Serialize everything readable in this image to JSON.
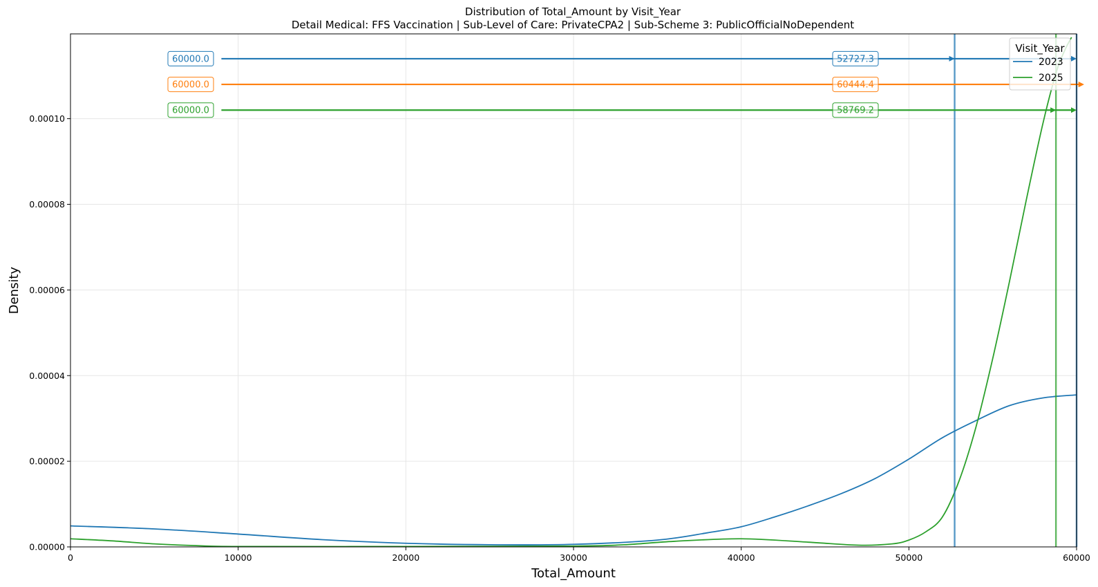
{
  "chart_data": {
    "type": "line",
    "title": "Distribution of Total_Amount by Visit_Year",
    "subtitle": "Detail Medical: FFS Vaccination | Sub-Level of Care: PrivateCPA2 | Sub-Scheme 3: PublicOfficialNoDependent",
    "xlabel": "Total_Amount",
    "ylabel": "Density",
    "xlim": [
      0,
      60000
    ],
    "ylim": [
      0,
      0.0001198
    ],
    "x_ticks": [
      0,
      10000,
      20000,
      30000,
      40000,
      50000,
      60000
    ],
    "x_tick_labels": [
      "0",
      "10000",
      "20000",
      "30000",
      "40000",
      "50000",
      "60000"
    ],
    "y_ticks": [
      0,
      2e-05,
      4e-05,
      6e-05,
      8e-05,
      0.0001
    ],
    "y_tick_labels": [
      "0.00000",
      "0.00002",
      "0.00004",
      "0.00006",
      "0.00008",
      "0.00010"
    ],
    "grid": true,
    "legend": {
      "title": "Visit_Year",
      "placement": "top-right",
      "entries": [
        {
          "label": "2023",
          "color": "#1f77b4"
        },
        {
          "label": "2025",
          "color": "#2ca02c"
        }
      ]
    },
    "series": [
      {
        "name": "2023",
        "color": "#1f77b4",
        "points": [
          [
            0,
            4.9e-06
          ],
          [
            5000,
            4.2e-06
          ],
          [
            10000,
            3e-06
          ],
          [
            15000,
            1.7e-06
          ],
          [
            20000,
            8.5e-07
          ],
          [
            25000,
            5e-07
          ],
          [
            30000,
            6e-07
          ],
          [
            35000,
            1.6e-06
          ],
          [
            38000,
            3.3e-06
          ],
          [
            40000,
            4.7e-06
          ],
          [
            42000,
            7e-06
          ],
          [
            44000,
            9.6e-06
          ],
          [
            46000,
            1.25e-05
          ],
          [
            48000,
            1.6e-05
          ],
          [
            50000,
            2.05e-05
          ],
          [
            52000,
            2.55e-05
          ],
          [
            54000,
            2.95e-05
          ],
          [
            56000,
            3.3e-05
          ],
          [
            58000,
            3.48e-05
          ],
          [
            60000,
            3.55e-05
          ]
        ]
      },
      {
        "name": "2025",
        "color": "#2ca02c",
        "points": [
          [
            0,
            1.9e-06
          ],
          [
            2500,
            1.4e-06
          ],
          [
            5000,
            7e-07
          ],
          [
            7500,
            3e-07
          ],
          [
            10000,
            1e-07
          ],
          [
            20000,
            1e-07
          ],
          [
            30000,
            2e-07
          ],
          [
            33000,
            5e-07
          ],
          [
            36000,
            1.3e-06
          ],
          [
            40000,
            1.9e-06
          ],
          [
            44000,
            1.1e-06
          ],
          [
            47000,
            4e-07
          ],
          [
            49000,
            7e-07
          ],
          [
            50000,
            1.6e-06
          ],
          [
            51000,
            3.5e-06
          ],
          [
            52000,
            7e-06
          ],
          [
            53000,
            1.55e-05
          ],
          [
            54000,
            2.8e-05
          ],
          [
            55000,
            4.4e-05
          ],
          [
            56000,
            6.2e-05
          ],
          [
            57000,
            8.1e-05
          ],
          [
            58000,
            9.9e-05
          ],
          [
            58800,
            0.000111
          ],
          [
            59300,
            0.000116
          ],
          [
            59700,
            0.000119
          ]
        ]
      }
    ],
    "vertical_lines": [
      {
        "x": 52727.3,
        "color": "#1f77b4"
      },
      {
        "x": 58769.2,
        "color": "#2ca02c"
      },
      {
        "x": 60000,
        "color": "#1f77b4"
      },
      {
        "x": 60000,
        "color": "#000000",
        "dashed": true
      }
    ],
    "annotations": [
      {
        "label": "60000.0",
        "y": 0.000114,
        "x_start": 9000,
        "x_end": 60000,
        "color": "#1f77b4",
        "inner_label": "52727.3",
        "inner_x": 52727.3
      },
      {
        "label": "60000.0",
        "y": 0.000108,
        "x_start": 9000,
        "x_end": 60444.4,
        "color": "#ff7f0e",
        "inner_label": "60444.4",
        "inner_x": 60444.4
      },
      {
        "label": "60000.0",
        "y": 0.000102,
        "x_start": 9000,
        "x_end": 60000,
        "color": "#2ca02c",
        "inner_label": "58769.2",
        "inner_x": 58769.2
      }
    ]
  }
}
